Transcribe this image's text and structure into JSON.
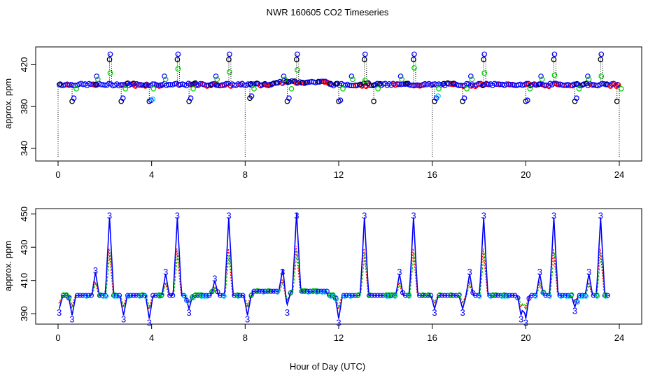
{
  "title": "NWR  160605  CO2 Timeseries",
  "xlabel": "Hour of Day (UTC)",
  "colors": {
    "black": "#000000",
    "blue": "#0000ff",
    "red": "#ff0000",
    "green": "#00cc00",
    "cyan": "#00c8ff",
    "panel_border": "#000000"
  },
  "chart_data": [
    {
      "type": "scatter",
      "panel": "top",
      "ylabel": "approx. ppm",
      "xlim": [
        0,
        24
      ],
      "ylim": [
        330,
        435
      ],
      "xticks": [
        "0",
        "4",
        "8",
        "12",
        "16",
        "20",
        "24"
      ],
      "yticks": [
        "340",
        "380",
        "420"
      ],
      "xtick_values": [
        0,
        4,
        8,
        12,
        16,
        20,
        24
      ],
      "ytick_values": [
        340,
        380,
        420
      ],
      "markers": "open circles",
      "grid": false,
      "base_level": 401,
      "spikes": [
        {
          "x": 2.2,
          "values": [
            430,
            425,
            412
          ]
        },
        {
          "x": 5.1,
          "values": [
            430,
            425,
            416
          ]
        },
        {
          "x": 7.3,
          "values": [
            430,
            425,
            413
          ]
        },
        {
          "x": 10.2,
          "values": [
            430,
            425,
            415
          ]
        },
        {
          "x": 13.1,
          "values": [
            430,
            425,
            405
          ]
        },
        {
          "x": 15.2,
          "values": [
            430,
            425,
            417
          ]
        },
        {
          "x": 18.2,
          "values": [
            430,
            425,
            412
          ]
        },
        {
          "x": 21.2,
          "values": [
            430,
            425,
            410
          ]
        },
        {
          "x": 23.2,
          "values": [
            430,
            425,
            409
          ]
        }
      ],
      "dips": [
        {
          "x": 0.6,
          "values": [
            385,
            388
          ]
        },
        {
          "x": 2.7,
          "values": [
            385,
            388
          ]
        },
        {
          "x": 3.9,
          "values": [
            385,
            386,
            387
          ]
        },
        {
          "x": 5.6,
          "values": [
            385,
            388
          ]
        },
        {
          "x": 8.2,
          "values": [
            388,
            390
          ]
        },
        {
          "x": 9.8,
          "values": [
            385,
            388
          ]
        },
        {
          "x": 12.0,
          "values": [
            385,
            386
          ]
        },
        {
          "x": 13.5,
          "values": [
            385
          ]
        },
        {
          "x": 16.1,
          "values": [
            385,
            388,
            390
          ]
        },
        {
          "x": 17.3,
          "values": [
            385,
            388
          ]
        },
        {
          "x": 20.0,
          "values": [
            385,
            386
          ]
        },
        {
          "x": 22.1,
          "values": [
            385,
            388
          ]
        },
        {
          "x": 23.9,
          "values": [
            385
          ]
        }
      ],
      "deep_dropouts": [
        0.0,
        8.0,
        16.0,
        24.0
      ]
    },
    {
      "type": "line",
      "panel": "bottom",
      "ylabel": "approx. ppm",
      "xlim": [
        0,
        24
      ],
      "ylim": [
        385,
        452
      ],
      "xticks": [
        "0",
        "4",
        "8",
        "12",
        "16",
        "20",
        "24"
      ],
      "yticks": [
        "390",
        "410",
        "430",
        "450"
      ],
      "xtick_values": [
        0,
        4,
        8,
        12,
        16,
        20,
        24
      ],
      "ytick_values": [
        390,
        410,
        430,
        450
      ],
      "series": [
        {
          "name": "3",
          "color": "#0000ff"
        }
      ],
      "spike_peaks": [
        {
          "x": 1.6,
          "value": 415
        },
        {
          "x": 2.2,
          "value": 448
        },
        {
          "x": 4.6,
          "value": 414
        },
        {
          "x": 5.1,
          "value": 448
        },
        {
          "x": 6.7,
          "value": 410
        },
        {
          "x": 7.3,
          "value": 448
        },
        {
          "x": 9.6,
          "value": 414
        },
        {
          "x": 10.2,
          "value": 448
        },
        {
          "x": 13.1,
          "value": 448
        },
        {
          "x": 14.6,
          "value": 414
        },
        {
          "x": 15.2,
          "value": 448
        },
        {
          "x": 17.6,
          "value": 414
        },
        {
          "x": 18.2,
          "value": 448
        },
        {
          "x": 20.6,
          "value": 414
        },
        {
          "x": 21.2,
          "value": 448
        },
        {
          "x": 22.7,
          "value": 414
        },
        {
          "x": 23.2,
          "value": 448
        }
      ],
      "dip_troughs": [
        {
          "x": 0.05,
          "value": 393
        },
        {
          "x": 0.6,
          "value": 389
        },
        {
          "x": 2.8,
          "value": 389
        },
        {
          "x": 3.9,
          "value": 387
        },
        {
          "x": 5.6,
          "value": 393
        },
        {
          "x": 8.1,
          "value": 389
        },
        {
          "x": 9.8,
          "value": 393
        },
        {
          "x": 12.0,
          "value": 387
        },
        {
          "x": 16.1,
          "value": 393
        },
        {
          "x": 17.3,
          "value": 393
        },
        {
          "x": 19.8,
          "value": 389
        },
        {
          "x": 20.0,
          "value": 387
        },
        {
          "x": 22.1,
          "value": 394
        }
      ]
    }
  ]
}
